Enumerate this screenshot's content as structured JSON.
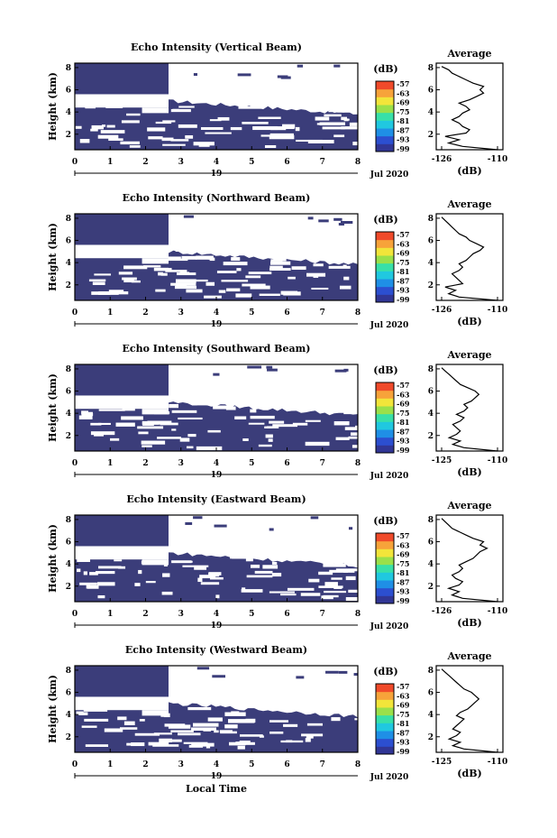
{
  "figure": {
    "xlabel": "Local Time",
    "day_label": "19",
    "date_label": "Jul 2020",
    "colorbar_unit": "(dB)",
    "colorbar_ticks": [
      "-57",
      "-63",
      "-69",
      "-75",
      "-81",
      "-87",
      "-93",
      "-99"
    ],
    "colormap": [
      "#313695",
      "#2c4fd0",
      "#1f8fe6",
      "#20c8e0",
      "#38e0a8",
      "#9ae04a",
      "#f2e53a",
      "#f7a33a",
      "#f04a2a"
    ],
    "background_color": "#3b3d7a",
    "x_ticks": [
      "0",
      "1",
      "2",
      "3",
      "4",
      "5",
      "6",
      "7",
      "8"
    ],
    "y_ticks": [
      "2",
      "4",
      "6",
      "8"
    ],
    "ylabel": "Height (km)",
    "avg_title": "Average",
    "avg_xlabel": "(dB)"
  },
  "chart_data": [
    {
      "type": "heatmap",
      "title": "Echo Intensity (Vertical Beam)",
      "avg_x_ticks": [
        "-126",
        "-110"
      ],
      "height_km": [
        0.6,
        0.9,
        1.2,
        1.5,
        1.8,
        2.1,
        2.4,
        2.7,
        3.0,
        3.3,
        3.6,
        3.9,
        4.2,
        4.5,
        4.8,
        5.1,
        5.4,
        5.7,
        6.0,
        6.3,
        6.6,
        6.9,
        7.2,
        7.5,
        7.8,
        8.1
      ],
      "average_db": [
        -110,
        -120,
        -124,
        -121,
        -125,
        -119,
        -118,
        -120,
        -121,
        -123,
        -121,
        -120,
        -118,
        -119,
        -121,
        -118,
        -116,
        -114,
        -115,
        -114,
        -117,
        -119,
        -121,
        -123,
        -124,
        -126
      ]
    },
    {
      "type": "heatmap",
      "title": "Echo Intensity (Northward Beam)",
      "avg_x_ticks": [
        "-126",
        "-110"
      ],
      "height_km": [
        0.6,
        0.9,
        1.2,
        1.5,
        1.8,
        2.1,
        2.4,
        2.7,
        3.0,
        3.3,
        3.6,
        3.9,
        4.2,
        4.5,
        4.8,
        5.1,
        5.4,
        5.7,
        6.0,
        6.3,
        6.6,
        6.9,
        7.2,
        7.5,
        7.8,
        8.1
      ],
      "average_db": [
        -110,
        -121,
        -124,
        -122,
        -125,
        -120,
        -121,
        -122,
        -123,
        -121,
        -120,
        -121,
        -119,
        -118,
        -117,
        -115,
        -114,
        -116,
        -118,
        -119,
        -121,
        -122,
        -123,
        -124,
        -125,
        -126
      ]
    },
    {
      "type": "heatmap",
      "title": "Echo Intensity (Southward Beam)",
      "avg_x_ticks": [
        "-125",
        "-110"
      ],
      "height_km": [
        0.6,
        0.9,
        1.2,
        1.5,
        1.8,
        2.1,
        2.4,
        2.7,
        3.0,
        3.3,
        3.6,
        3.9,
        4.2,
        4.5,
        4.8,
        5.1,
        5.4,
        5.7,
        6.0,
        6.3,
        6.6,
        6.9,
        7.2,
        7.5,
        7.8,
        8.1
      ],
      "average_db": [
        -110,
        -119,
        -122,
        -120,
        -123,
        -121,
        -120,
        -121,
        -122,
        -120,
        -119,
        -121,
        -119,
        -118,
        -119,
        -117,
        -116,
        -115,
        -116,
        -118,
        -120,
        -121,
        -122,
        -123,
        -124,
        -125
      ]
    },
    {
      "type": "heatmap",
      "title": "Echo Intensity (Eastward Beam)",
      "avg_x_ticks": [
        "-126",
        "-110"
      ],
      "height_km": [
        0.6,
        0.9,
        1.2,
        1.5,
        1.8,
        2.1,
        2.4,
        2.7,
        3.0,
        3.3,
        3.6,
        3.9,
        4.2,
        4.5,
        4.8,
        5.1,
        5.4,
        5.7,
        6.0,
        6.3,
        6.6,
        6.9,
        7.2,
        7.5,
        7.8,
        8.1
      ],
      "average_db": [
        -110,
        -120,
        -123,
        -121,
        -124,
        -121,
        -120,
        -122,
        -123,
        -121,
        -120,
        -121,
        -119,
        -117,
        -116,
        -115,
        -113,
        -115,
        -114,
        -117,
        -119,
        -121,
        -123,
        -124,
        -125,
        -126
      ]
    },
    {
      "type": "heatmap",
      "title": "Echo Intensity (Westward Beam)",
      "avg_x_ticks": [
        "-125",
        "-110"
      ],
      "height_km": [
        0.6,
        0.9,
        1.2,
        1.5,
        1.8,
        2.1,
        2.4,
        2.7,
        3.0,
        3.3,
        3.6,
        3.9,
        4.2,
        4.5,
        4.8,
        5.1,
        5.4,
        5.7,
        6.0,
        6.3,
        6.6,
        6.9,
        7.2,
        7.5,
        7.8,
        8.1
      ],
      "average_db": [
        -110,
        -119,
        -122,
        -120,
        -123,
        -121,
        -120,
        -122,
        -121,
        -120,
        -119,
        -121,
        -120,
        -118,
        -117,
        -116,
        -115,
        -116,
        -117,
        -119,
        -120,
        -121,
        -122,
        -123,
        -124,
        -125
      ]
    }
  ]
}
